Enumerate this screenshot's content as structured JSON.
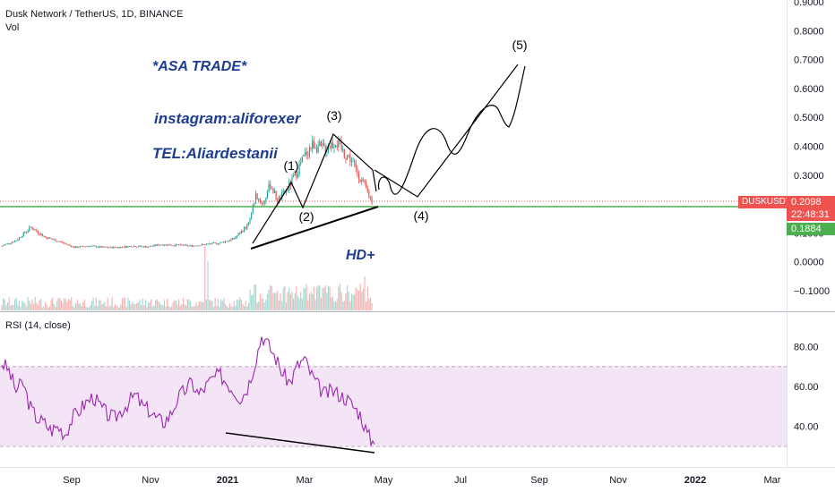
{
  "header": {
    "symbol_line": "Dusk Network / TetherUS, 1D, BINANCE",
    "volume_label": "Vol",
    "rsi_label": "RSI (14, close)"
  },
  "annotations": {
    "brand": "*ASA  TRADE*",
    "instagram": "instagram:aliforexer",
    "tel": "TEL:Aliardestanii",
    "hd": "HD+"
  },
  "price_tags": {
    "symbol": "DUSKUSDT",
    "last_price": "0.2098",
    "countdown": "22:48:31",
    "support_price": "0.1884"
  },
  "colors": {
    "up": "#26a69a",
    "down": "#ef5350",
    "support_line": "#4caf50",
    "rsi_line": "#9c27b0",
    "rsi_band": "#f3e5f5",
    "annotation_text": "#1e3d8f"
  },
  "chart_data": {
    "type": "line",
    "price_axis": {
      "ticks": [
        "0.9000",
        "0.8000",
        "0.7000",
        "0.6000",
        "0.5000",
        "0.4000",
        "0.3000",
        "0.2000",
        "0.1000",
        "0.0000",
        "−0.1000"
      ],
      "ylim": [
        -0.14,
        0.9
      ]
    },
    "time_axis": {
      "ticks": [
        "Sep",
        "Nov",
        "2021",
        "Mar",
        "May",
        "Jul",
        "Sep",
        "Nov",
        "2022",
        "Mar"
      ]
    },
    "price_series": {
      "x_index": [
        0,
        10,
        20,
        30,
        40,
        50,
        60,
        70,
        80,
        90,
        100,
        110,
        120,
        130,
        140,
        150,
        160,
        170,
        175,
        180,
        185,
        190,
        195,
        200,
        205,
        210,
        215,
        220,
        225,
        230,
        235,
        240,
        245,
        250,
        255
      ],
      "close": [
        0.055,
        0.075,
        0.12,
        0.085,
        0.07,
        0.05,
        0.055,
        0.05,
        0.05,
        0.055,
        0.052,
        0.06,
        0.058,
        0.055,
        0.06,
        0.065,
        0.08,
        0.13,
        0.23,
        0.2,
        0.27,
        0.21,
        0.24,
        0.28,
        0.33,
        0.38,
        0.41,
        0.39,
        0.4,
        0.42,
        0.38,
        0.36,
        0.31,
        0.26,
        0.21
      ]
    },
    "wave_labels": [
      "(1)",
      "(2)",
      "(3)",
      "(4)",
      "(5)"
    ],
    "last_price": 0.2098,
    "support_level": 0.1884,
    "rsi": {
      "axis_ticks": [
        "80.00",
        "60.00",
        "40.00"
      ],
      "ylim": [
        26,
        90
      ],
      "band": [
        30,
        70
      ],
      "values": [
        72,
        68,
        58,
        62,
        50,
        44,
        42,
        38,
        40,
        36,
        44,
        48,
        52,
        55,
        50,
        46,
        44,
        48,
        52,
        56,
        50,
        48,
        44,
        42,
        46,
        54,
        58,
        62,
        56,
        60,
        64,
        66,
        62,
        58,
        54,
        60,
        72,
        86,
        80,
        74,
        66,
        62,
        70,
        74,
        66,
        60,
        56,
        58,
        56,
        54,
        50,
        46,
        36,
        31
      ]
    }
  }
}
